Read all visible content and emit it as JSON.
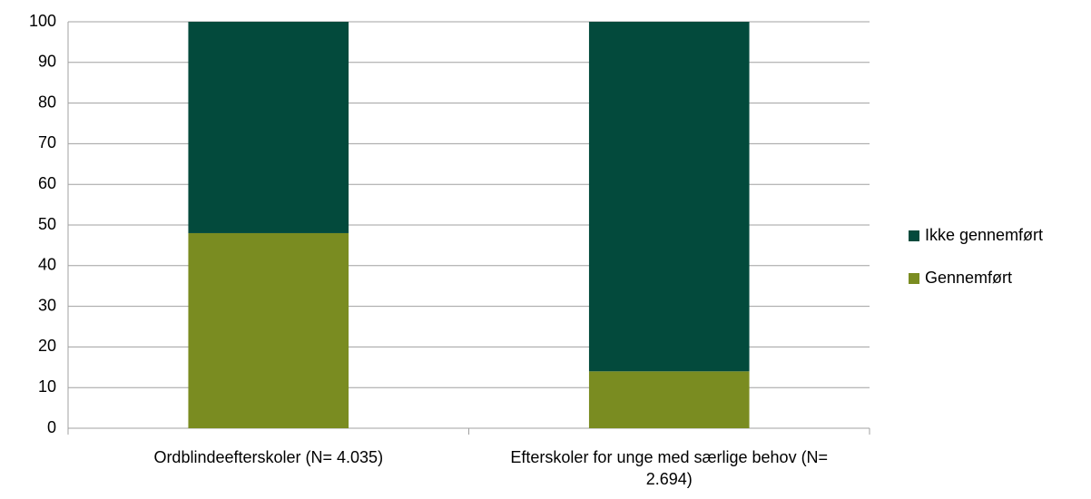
{
  "chart_data": {
    "type": "stacked_bar",
    "categories": [
      "Ordblindeefterskoler (N= 4.035)",
      "Efterskoler for unge med særlige behov (N= 2.694)"
    ],
    "series": [
      {
        "name": "Gennemført",
        "color": "#7a8c21",
        "values": [
          48,
          14
        ]
      },
      {
        "name": "Ikke gennemført",
        "color": "#034a3c",
        "values": [
          52,
          86
        ]
      }
    ],
    "ylim": [
      0,
      100
    ],
    "yticks": [
      0,
      10,
      20,
      30,
      40,
      50,
      60,
      70,
      80,
      90,
      100
    ],
    "grid": true,
    "legend": "right"
  }
}
